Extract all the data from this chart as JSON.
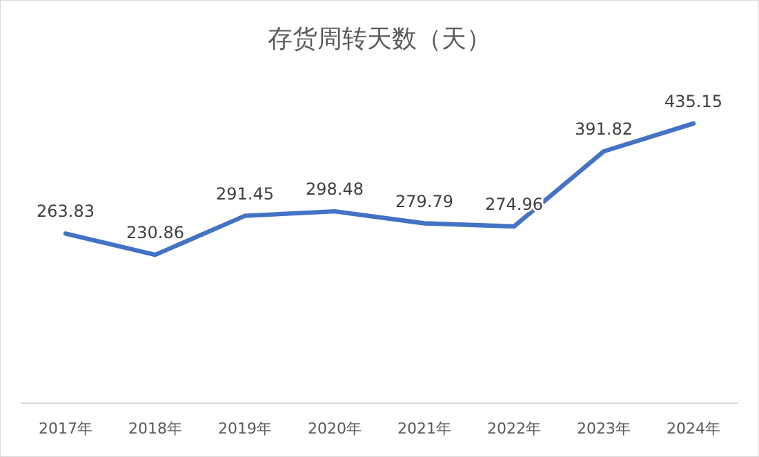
{
  "chart_data": {
    "type": "line",
    "title": "存货周转天数（天）",
    "categories": [
      "2017年",
      "2018年",
      "2019年",
      "2020年",
      "2021年",
      "2022年",
      "2023年",
      "2024年"
    ],
    "series": [
      {
        "color": "#4472c4",
        "values": [
          263.83,
          230.86,
          291.45,
          298.48,
          279.79,
          274.96,
          391.82,
          435.15
        ]
      }
    ],
    "data_labels": true,
    "line_style": "solid"
  }
}
